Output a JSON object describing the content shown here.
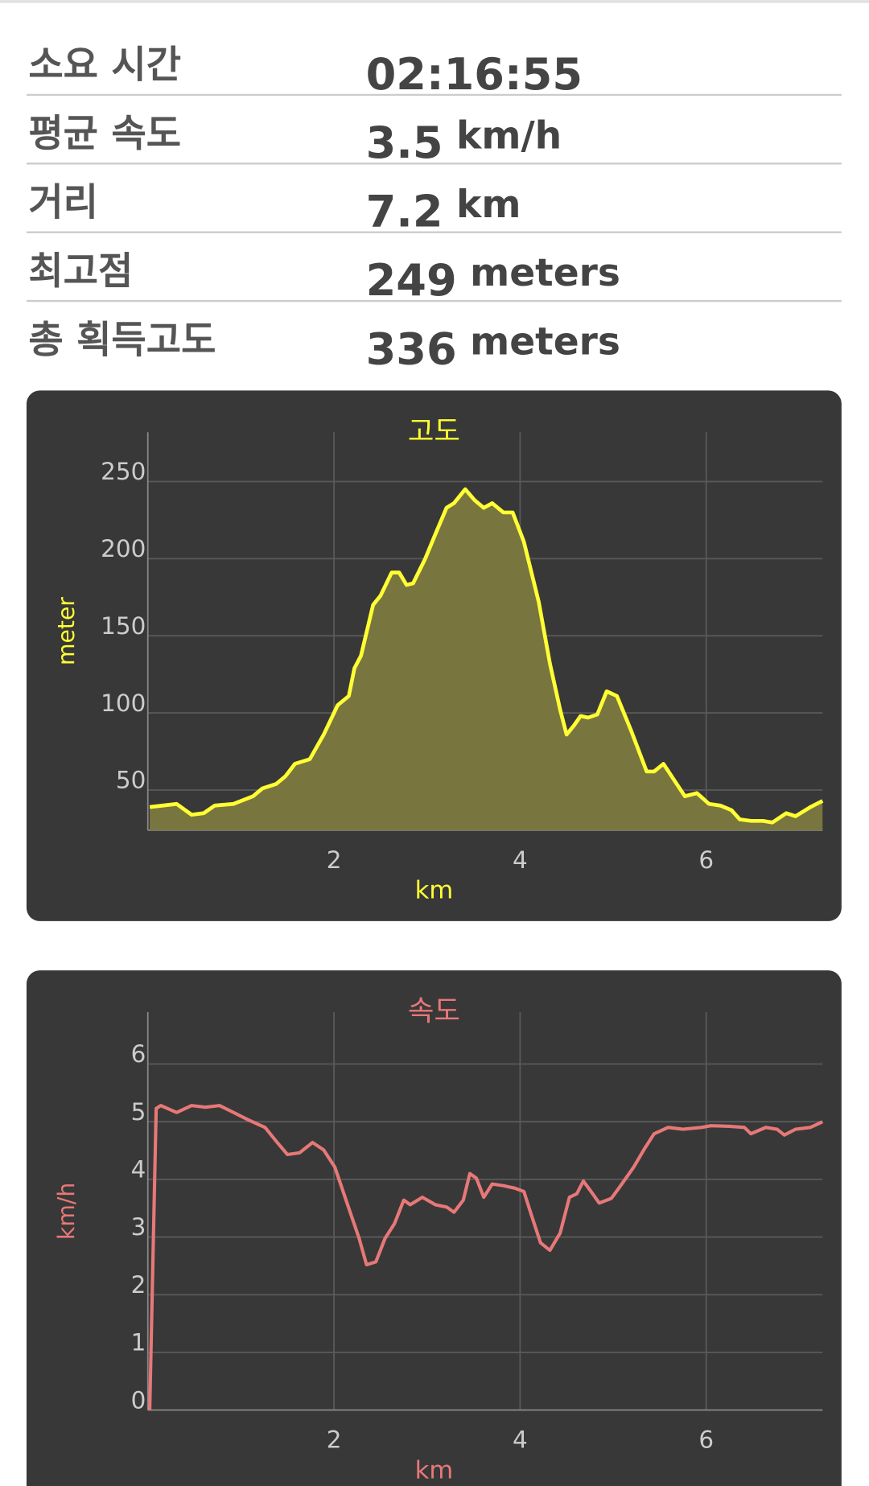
{
  "stats": [
    {
      "label": "소요 시간",
      "value": "02:16:55"
    },
    {
      "label": "평균 속도",
      "value": "3.5",
      "unit": "km/h"
    },
    {
      "label": "거리",
      "value": "7.2",
      "unit": "km"
    },
    {
      "label": "최고점",
      "value": "249",
      "unit": "meters"
    },
    {
      "label": "총 획득고도",
      "value": "336",
      "unit": "meters"
    }
  ],
  "chart_data": [
    {
      "type": "area",
      "title": "고도",
      "xlabel": "km",
      "ylabel": "meter",
      "color": "#ffff33",
      "fill_color": "#78753f",
      "grid": true,
      "xlim": [
        0,
        7.25
      ],
      "ylim": [
        24,
        282
      ],
      "xticks": [
        2,
        4,
        6
      ],
      "yticks": [
        50,
        100,
        150,
        200,
        250
      ],
      "x": [
        0.02,
        0.31,
        0.47,
        0.6,
        0.72,
        0.92,
        1.13,
        1.23,
        1.38,
        1.48,
        1.58,
        1.74,
        1.89,
        2.04,
        2.16,
        2.22,
        2.29,
        2.42,
        2.5,
        2.62,
        2.7,
        2.78,
        2.85,
        2.98,
        3.09,
        3.21,
        3.29,
        3.41,
        3.51,
        3.61,
        3.7,
        3.82,
        3.92,
        4.04,
        4.2,
        4.32,
        4.43,
        4.5,
        4.58,
        4.65,
        4.73,
        4.83,
        4.93,
        5.04,
        5.19,
        5.36,
        5.44,
        5.54,
        5.66,
        5.77,
        5.9,
        6.03,
        6.15,
        6.27,
        6.36,
        6.48,
        6.61,
        6.71,
        6.86,
        6.96,
        7.12,
        7.25
      ],
      "values": [
        39,
        41,
        34,
        35,
        40,
        41,
        46,
        51,
        54,
        59,
        67,
        70,
        86,
        105,
        111,
        129,
        137,
        170,
        176,
        191,
        191,
        183,
        184,
        200,
        216,
        233,
        236,
        245,
        238,
        233,
        236,
        230,
        230,
        211,
        172,
        132,
        102,
        86,
        92,
        98,
        97,
        99,
        114,
        111,
        89,
        62,
        62,
        67,
        56,
        46,
        48,
        41,
        40,
        37,
        31,
        30,
        30,
        29,
        35,
        33,
        39,
        43
      ]
    },
    {
      "type": "line",
      "title": "속도",
      "xlabel": "km",
      "ylabel": "km/h",
      "color": "#e87878",
      "grid": true,
      "xlim": [
        0,
        7.25
      ],
      "ylim": [
        0,
        6.9
      ],
      "xticks": [
        2,
        4,
        6
      ],
      "yticks": [
        0,
        1,
        2,
        3,
        4,
        5,
        6
      ],
      "x": [
        0.02,
        0.09,
        0.14,
        0.31,
        0.47,
        0.62,
        0.77,
        0.92,
        1.08,
        1.26,
        1.38,
        1.5,
        1.63,
        1.77,
        1.89,
        2.01,
        2.14,
        2.27,
        2.35,
        2.45,
        2.55,
        2.65,
        2.75,
        2.82,
        2.95,
        3.09,
        3.21,
        3.29,
        3.39,
        3.46,
        3.53,
        3.61,
        3.7,
        3.82,
        3.94,
        4.04,
        4.12,
        4.22,
        4.32,
        4.43,
        4.53,
        4.61,
        4.68,
        4.78,
        4.85,
        4.98,
        5.08,
        5.22,
        5.34,
        5.44,
        5.59,
        5.75,
        5.95,
        6.05,
        6.25,
        6.41,
        6.48,
        6.64,
        6.76,
        6.84,
        6.96,
        7.12,
        7.25
      ],
      "values": [
        0,
        5.23,
        5.28,
        5.16,
        5.28,
        5.25,
        5.28,
        5.16,
        5.03,
        4.9,
        4.66,
        4.43,
        4.46,
        4.64,
        4.51,
        4.21,
        3.59,
        2.98,
        2.52,
        2.57,
        2.98,
        3.23,
        3.64,
        3.56,
        3.69,
        3.56,
        3.52,
        3.43,
        3.64,
        4.1,
        4.02,
        3.69,
        3.92,
        3.89,
        3.85,
        3.79,
        3.39,
        2.9,
        2.77,
        3.07,
        3.69,
        3.75,
        3.97,
        3.75,
        3.59,
        3.67,
        3.89,
        4.21,
        4.54,
        4.79,
        4.9,
        4.87,
        4.9,
        4.93,
        4.92,
        4.9,
        4.79,
        4.9,
        4.87,
        4.77,
        4.87,
        4.9,
        5.0
      ]
    }
  ]
}
